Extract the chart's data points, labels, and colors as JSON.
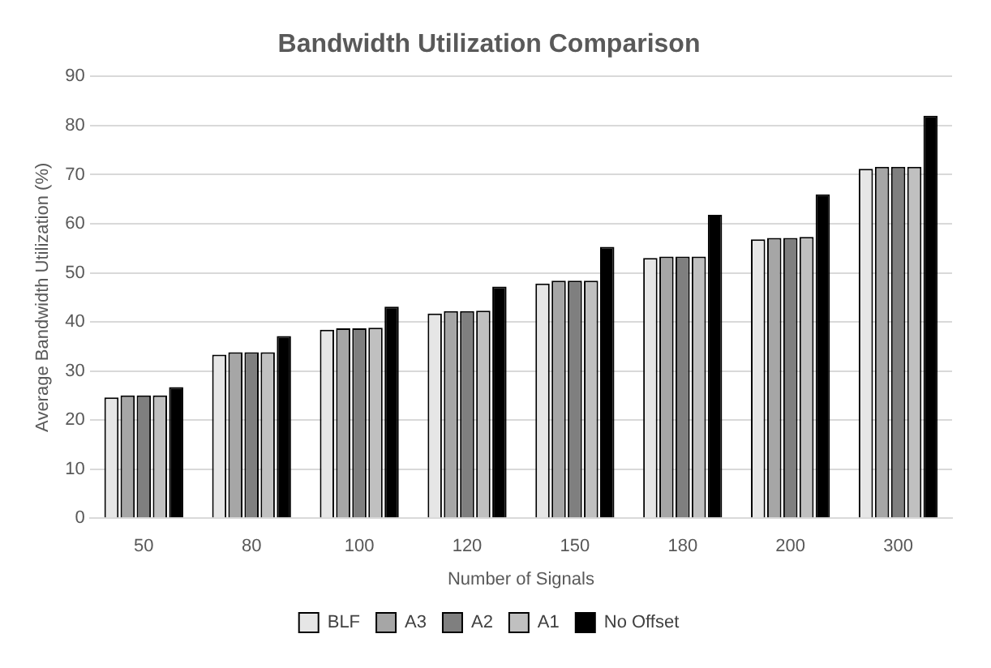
{
  "chart_data": {
    "type": "bar",
    "title": "Bandwidth Utilization Comparison",
    "xlabel": "Number of Signals",
    "ylabel": "Average Bandwidth Utilization (%)",
    "categories": [
      "50",
      "80",
      "100",
      "120",
      "150",
      "180",
      "200",
      "300"
    ],
    "series": [
      {
        "name": "BLF",
        "color": "#e6e6e6",
        "values": [
          24.6,
          33.3,
          38.4,
          41.7,
          47.8,
          53.0,
          56.8,
          71.2
        ]
      },
      {
        "name": "A3",
        "color": "#a6a6a6",
        "values": [
          25.0,
          33.8,
          38.7,
          42.2,
          48.4,
          53.3,
          57.1,
          71.6
        ]
      },
      {
        "name": "A2",
        "color": "#7f7f7f",
        "values": [
          25.0,
          33.8,
          38.7,
          42.2,
          48.4,
          53.3,
          57.1,
          71.6
        ]
      },
      {
        "name": "A1",
        "color": "#c0c0c0",
        "values": [
          25.0,
          33.8,
          38.8,
          42.3,
          48.4,
          53.3,
          57.3,
          71.6
        ]
      },
      {
        "name": "No Offset",
        "color": "#000000",
        "values": [
          26.7,
          37.1,
          43.1,
          47.2,
          55.3,
          61.8,
          66.0,
          82.0
        ]
      }
    ],
    "ylim": [
      0,
      90
    ],
    "yticks": [
      0,
      10,
      20,
      30,
      40,
      50,
      60,
      70,
      80,
      90
    ],
    "grid": "y",
    "legend": "bottom"
  }
}
